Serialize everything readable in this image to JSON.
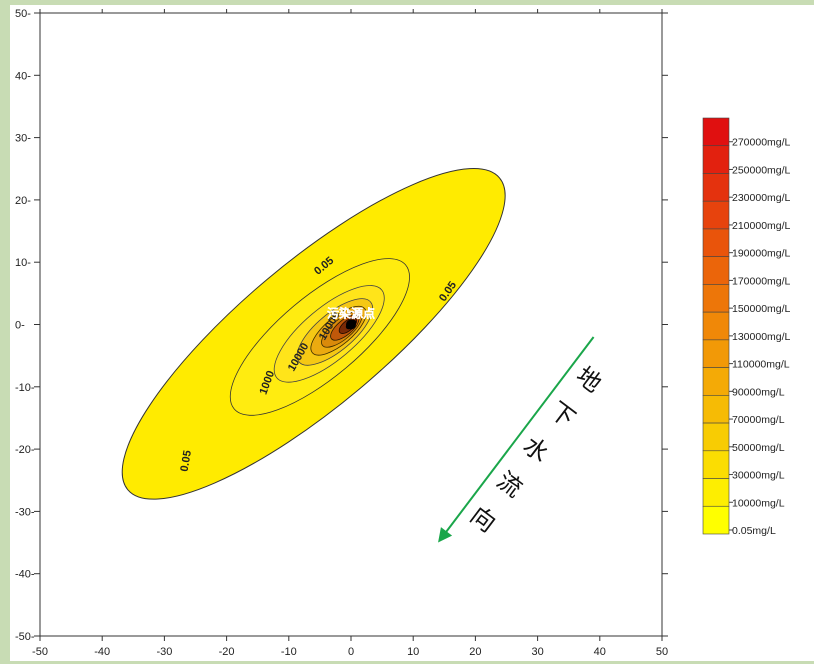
{
  "chart_data": {
    "type": "contour",
    "xlim": [
      -50,
      50
    ],
    "ylim": [
      -50,
      50
    ],
    "x_ticks": [
      -50,
      -40,
      -30,
      -20,
      -10,
      0,
      10,
      20,
      30,
      40,
      50
    ],
    "y_ticks": [
      50,
      40,
      30,
      20,
      10,
      0,
      -10,
      -20,
      -30,
      -40,
      -50
    ],
    "contour_labels": [
      {
        "text": "0.05",
        "x": -4,
        "y": 9,
        "angle": -40
      },
      {
        "text": "0.05",
        "x": 16,
        "y": 5,
        "angle": -55
      },
      {
        "text": "0.05",
        "x": -26,
        "y": -22,
        "angle": -80
      },
      {
        "text": "1000",
        "x": -13,
        "y": -9.5,
        "angle": -70
      },
      {
        "text": "10000",
        "x": -8,
        "y": -5.5,
        "angle": -60
      },
      {
        "text": "10000",
        "x": -3,
        "y": -0.5,
        "angle": -60
      }
    ],
    "source_label": "污染源点",
    "source": {
      "x": 0,
      "y": 0
    },
    "flow_arrow": {
      "from": [
        39,
        -2
      ],
      "to": [
        14,
        -35
      ],
      "color": "#1aa64a",
      "label_chars": [
        "地",
        "下",
        "水",
        "流",
        "向"
      ]
    },
    "legend": {
      "entries": [
        "270000mg/L",
        "250000mg/L",
        "230000mg/L",
        "210000mg/L",
        "190000mg/L",
        "170000mg/L",
        "150000mg/L",
        "130000mg/L",
        "110000mg/L",
        "90000mg/L",
        "70000mg/L",
        "50000mg/L",
        "30000mg/L",
        "10000mg/L",
        "0.05mg/L"
      ],
      "color_top": "#e01010",
      "color_bottom": "#ffff00"
    }
  }
}
